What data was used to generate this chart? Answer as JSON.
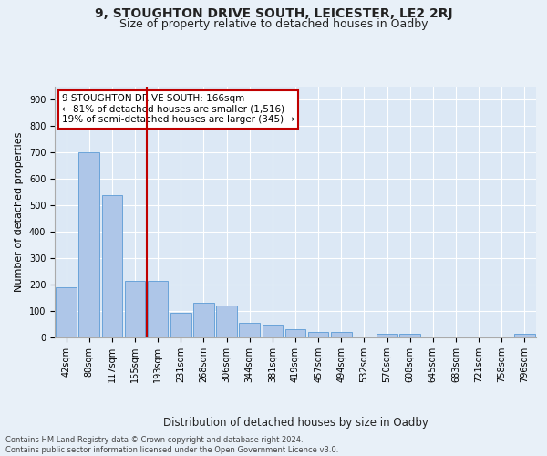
{
  "title1": "9, STOUGHTON DRIVE SOUTH, LEICESTER, LE2 2RJ",
  "title2": "Size of property relative to detached houses in Oadby",
  "xlabel": "Distribution of detached houses by size in Oadby",
  "ylabel": "Number of detached properties",
  "categories": [
    "42sqm",
    "80sqm",
    "117sqm",
    "155sqm",
    "193sqm",
    "231sqm",
    "268sqm",
    "306sqm",
    "344sqm",
    "381sqm",
    "419sqm",
    "457sqm",
    "494sqm",
    "532sqm",
    "570sqm",
    "608sqm",
    "645sqm",
    "683sqm",
    "721sqm",
    "758sqm",
    "796sqm"
  ],
  "values": [
    190,
    700,
    540,
    215,
    215,
    95,
    130,
    120,
    55,
    50,
    30,
    20,
    20,
    0,
    15,
    15,
    0,
    0,
    0,
    0,
    15
  ],
  "bar_color": "#aec6e8",
  "bar_edge_color": "#5b9bd5",
  "vline_x_index": 3.5,
  "vline_color": "#c00000",
  "annotation_text": "9 STOUGHTON DRIVE SOUTH: 166sqm\n← 81% of detached houses are smaller (1,516)\n19% of semi-detached houses are larger (345) →",
  "annotation_box_color": "#ffffff",
  "annotation_box_edge": "#c00000",
  "background_color": "#e8f0f8",
  "plot_bg_color": "#dce8f5",
  "grid_color": "#ffffff",
  "ylim": [
    0,
    950
  ],
  "yticks": [
    0,
    100,
    200,
    300,
    400,
    500,
    600,
    700,
    800,
    900
  ],
  "footer": "Contains HM Land Registry data © Crown copyright and database right 2024.\nContains public sector information licensed under the Open Government Licence v3.0.",
  "title1_fontsize": 10,
  "title2_fontsize": 9,
  "xlabel_fontsize": 8.5,
  "ylabel_fontsize": 8,
  "tick_fontsize": 7,
  "annotation_fontsize": 7.5,
  "footer_fontsize": 6
}
